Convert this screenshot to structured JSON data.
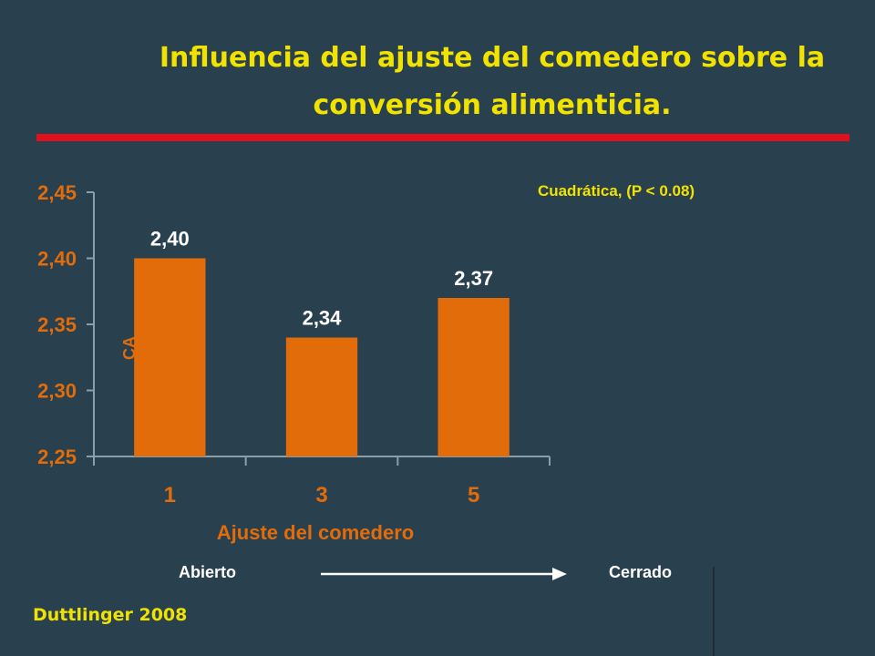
{
  "slide": {
    "title": "Influencia del ajuste del comedero sobre la conversión alimenticia.",
    "source": "Duttlinger 2008",
    "arrow_left_label": "Abierto",
    "arrow_right_label": "Cerrado",
    "title_color": "#f2e200",
    "rule_color": "#e0101c"
  },
  "chart_data": {
    "type": "bar",
    "categories": [
      "1",
      "3",
      "5"
    ],
    "values": [
      2.4,
      2.34,
      2.37
    ],
    "data_labels": [
      "2,40",
      "2,34",
      "2,37"
    ],
    "xlabel": "Ajuste del comedero",
    "ylabel": "CA",
    "ylim": [
      2.25,
      2.45
    ],
    "yticks": [
      2.25,
      2.3,
      2.35,
      2.4,
      2.45
    ],
    "ytick_labels": [
      "2,25",
      "2,30",
      "2,35",
      "2,40",
      "2,45"
    ],
    "annotation": "Cuadrática, (P < 0.08)",
    "grid": false,
    "bar_color": "#e36c0a",
    "text_color": "#e36c0a"
  }
}
